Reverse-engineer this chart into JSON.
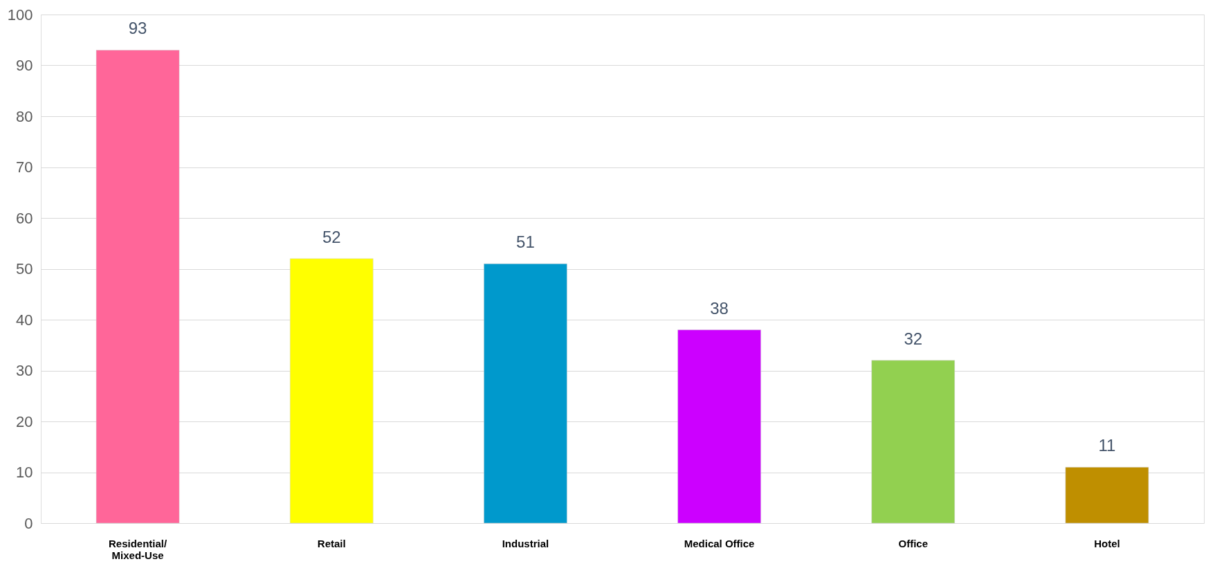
{
  "chart_data": {
    "type": "bar",
    "categories": [
      "Residential/\nMixed-Use",
      "Retail",
      "Industrial",
      "Medical Office",
      "Office",
      "Hotel"
    ],
    "values": [
      93,
      52,
      51,
      38,
      32,
      11
    ],
    "colors": [
      "#ff6699",
      "#ffff00",
      "#0099cc",
      "#cc00ff",
      "#92d050",
      "#bf8f00"
    ],
    "ylim": [
      0,
      100
    ],
    "yticks": [
      0,
      10,
      20,
      30,
      40,
      50,
      60,
      70,
      80,
      90,
      100
    ],
    "grid": "y",
    "data_labels": true
  }
}
